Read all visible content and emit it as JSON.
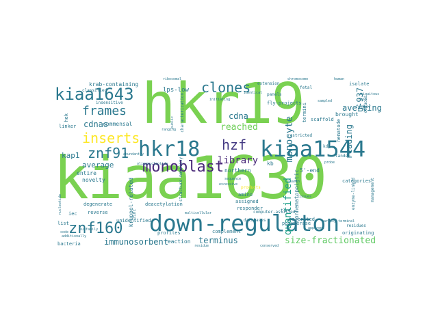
{
  "words": [
    {
      "text": "kiaa1630",
      "color": "#7ad151"
    },
    {
      "text": "hkr19",
      "color": "#7ad151"
    },
    {
      "text": "down-regulaton",
      "color": "#2a788e"
    },
    {
      "text": "kiaa1544",
      "color": "#2a788e"
    },
    {
      "text": "hkr18",
      "color": "#2a788e"
    },
    {
      "text": "kiaa1643",
      "color": "#2a788e"
    },
    {
      "text": "monoblast",
      "color": "#482878"
    },
    {
      "text": "znf160",
      "color": "#2a788e"
    },
    {
      "text": "znf91",
      "color": "#2a788e"
    },
    {
      "text": "inserts",
      "color": "#fde725"
    },
    {
      "text": "clones",
      "color": "#2a788e"
    },
    {
      "text": "frames",
      "color": "#2a788e"
    },
    {
      "text": "hzf",
      "color": "#443a83"
    },
    {
      "text": "quantified",
      "color": "#1f9e89"
    },
    {
      "text": "monocyte",
      "color": "#2a788e"
    },
    {
      "text": "library",
      "color": "#482878"
    },
    {
      "text": "size-fractionated",
      "color": "#5ec962"
    },
    {
      "text": "immunosorbent",
      "color": "#2a788e"
    },
    {
      "text": "terminus",
      "color": "#2a788e"
    },
    {
      "text": "reached",
      "color": "#6ece58"
    },
    {
      "text": "cdna",
      "color": "#2a788e"
    },
    {
      "text": "cdnas",
      "color": "#2a788e"
    },
    {
      "text": "averting",
      "color": "#2a788e"
    },
    {
      "text": "reading",
      "color": "#2a788e"
    },
    {
      "text": "average",
      "color": "#2a788e"
    },
    {
      "text": "u-937",
      "color": "#2a788e"
    },
    {
      "text": "kap1",
      "color": "#2a788e"
    },
    {
      "text": "commensal",
      "color": "#2a788e"
    },
    {
      "text": "lps-low",
      "color": "#2a788e"
    },
    {
      "text": "krab-containing",
      "color": "#2a788e"
    },
    {
      "text": "5'-end",
      "color": "#2a788e"
    },
    {
      "text": "nonhematopoietic",
      "color": "#2a788e"
    },
    {
      "text": "brought",
      "color": "#2a788e"
    },
    {
      "text": "nematode",
      "color": "#2a788e"
    },
    {
      "text": "entire",
      "color": "#2a788e"
    },
    {
      "text": "novelty",
      "color": "#2a788e"
    },
    {
      "text": "northern",
      "color": "#2a788e"
    },
    {
      "text": "kb",
      "color": "#2a788e"
    },
    {
      "text": "kruppel-related",
      "color": "#2a788e"
    },
    {
      "text": "deacetylation",
      "color": "#2a788e"
    },
    {
      "text": "unidentified",
      "color": "#2a788e"
    },
    {
      "text": "reaction",
      "color": "#2a788e"
    },
    {
      "text": "profiles",
      "color": "#2a788e"
    },
    {
      "text": "complement",
      "color": "#2a788e"
    },
    {
      "text": "bacteria",
      "color": "#2a788e"
    },
    {
      "text": "degenerate",
      "color": "#2a788e"
    },
    {
      "text": "reverse",
      "color": "#2a788e"
    },
    {
      "text": "amino",
      "color": "#2a788e"
    },
    {
      "text": "assigned",
      "color": "#2a788e"
    },
    {
      "text": "responder",
      "color": "#2a788e"
    },
    {
      "text": "polymerase",
      "color": "#2a788e"
    },
    {
      "text": "originating",
      "color": "#2a788e"
    },
    {
      "text": "categories",
      "color": "#2a788e"
    },
    {
      "text": "residues",
      "color": "#2a788e"
    },
    {
      "text": "enzyme-linked",
      "color": "#2a788e"
    },
    {
      "text": "management",
      "color": "#2a788e"
    },
    {
      "text": "isolate",
      "color": "#2a788e"
    },
    {
      "text": "tandem",
      "color": "#2a788e"
    },
    {
      "text": "scaffold",
      "color": "#2a788e"
    },
    {
      "text": "finger",
      "color": "#2a788e"
    },
    {
      "text": "fly-projects",
      "color": "#2a788e"
    },
    {
      "text": "panels",
      "color": "#2a788e"
    },
    {
      "text": "termini",
      "color": "#2a788e"
    },
    {
      "text": "restricted",
      "color": "#2a788e"
    },
    {
      "text": "products",
      "color": "#fde725"
    },
    {
      "text": "iec",
      "color": "#2a788e"
    },
    {
      "text": "list",
      "color": "#2a788e"
    },
    {
      "text": "zinc",
      "color": "#2a788e"
    },
    {
      "text": "linker",
      "color": "#2a788e"
    },
    {
      "text": "classified",
      "color": "#2a788e"
    },
    {
      "text": "hek",
      "color": "#2a788e"
    },
    {
      "text": "tolerated",
      "color": "#2a788e"
    },
    {
      "text": "extension",
      "color": "#2a788e"
    },
    {
      "text": "fetal",
      "color": "#2a788e"
    },
    {
      "text": "structure-motility",
      "color": "#2a788e"
    },
    {
      "text": "characterization",
      "color": "#2a788e"
    },
    {
      "text": "insensitive",
      "color": "#2a788e"
    },
    {
      "text": "subfamily",
      "color": "#2a788e"
    },
    {
      "text": "multicellular",
      "color": "#2a788e"
    },
    {
      "text": "databases",
      "color": "#2a788e"
    },
    {
      "text": "computer-assisted",
      "color": "#2a788e"
    },
    {
      "text": "tlr4",
      "color": "#2a788e"
    },
    {
      "text": "code",
      "color": "#2a788e"
    },
    {
      "text": "public",
      "color": "#2a788e"
    },
    {
      "text": "carboxy-terminal",
      "color": "#2a788e"
    },
    {
      "text": "conserved",
      "color": "#2a788e"
    },
    {
      "text": "residue",
      "color": "#2a788e"
    },
    {
      "text": "ranging",
      "color": "#2a788e"
    },
    {
      "text": "sequence",
      "color": "#2a788e"
    },
    {
      "text": "initiating",
      "color": "#2a788e"
    },
    {
      "text": "tissues",
      "color": "#2a788e"
    },
    {
      "text": "search",
      "color": "#2a788e"
    },
    {
      "text": "probe",
      "color": "#2a788e"
    },
    {
      "text": "chromosome",
      "color": "#2a788e"
    },
    {
      "text": "ubiquitous",
      "color": "#2a788e"
    },
    {
      "text": "deduced",
      "color": "#2a788e"
    },
    {
      "text": "sampled",
      "color": "#2a788e"
    },
    {
      "text": "human",
      "color": "#2a788e"
    },
    {
      "text": "additionally",
      "color": "#2a788e"
    },
    {
      "text": "apparent",
      "color": "#2a788e"
    },
    {
      "text": "excessive",
      "color": "#2a788e"
    },
    {
      "text": "abundantly",
      "color": "#2a788e"
    },
    {
      "text": "nucleotide",
      "color": "#2a788e"
    },
    {
      "text": "oligonucleotide",
      "color": "#2a788e"
    },
    {
      "text": "kda",
      "color": "#2a788e"
    },
    {
      "text": "help",
      "color": "#2a788e"
    },
    {
      "text": "identical",
      "color": "#2a788e"
    },
    {
      "text": "ribosomal",
      "color": "#2a788e"
    }
  ]
}
